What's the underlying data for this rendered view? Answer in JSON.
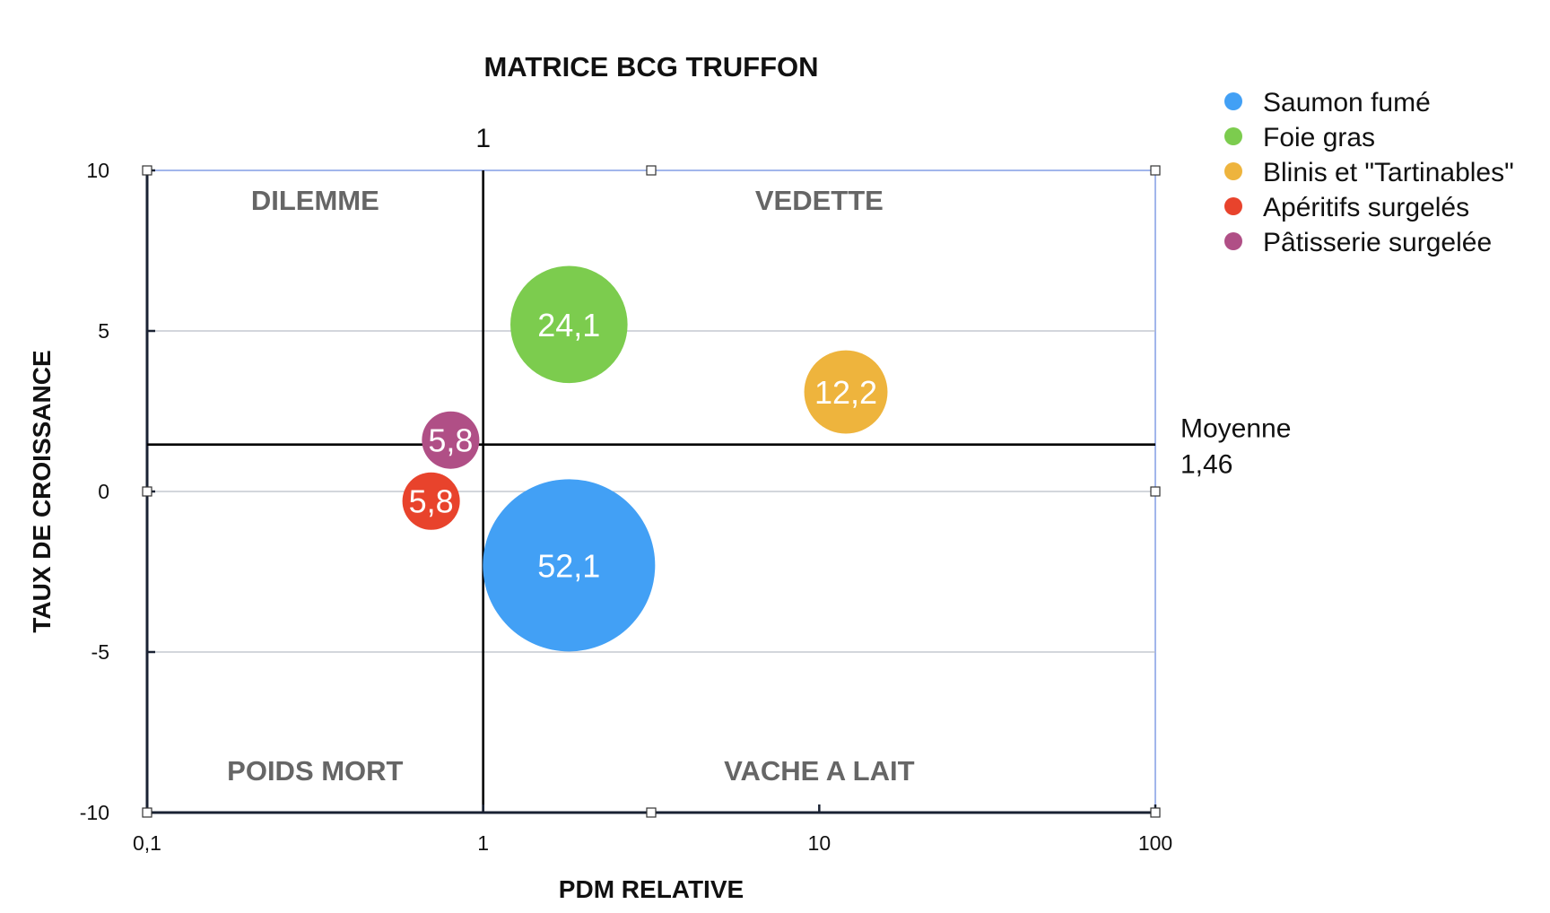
{
  "chart_data": {
    "type": "bubble",
    "title": "MATRICE BCG TRUFFON",
    "xlabel": "PDM RELATIVE",
    "ylabel": "TAUX DE CROISSANCE",
    "xscale": "log",
    "xlim": [
      0.1,
      100
    ],
    "ylim": [
      -10,
      10
    ],
    "x_ticks": [
      "0,1",
      "1",
      "10",
      "100"
    ],
    "y_ticks": [
      "10",
      "5",
      "0",
      "-5",
      "-10"
    ],
    "grid": "horizontal",
    "legend_position": "top-right",
    "quadrants": {
      "top_left": "DILEMME",
      "top_right": "VEDETTE",
      "bottom_left": "POIDS MORT",
      "bottom_right": "VACHE A LAIT"
    },
    "vertical_reference": {
      "x": 1,
      "label": "1"
    },
    "horizontal_reference": {
      "y": 1.46,
      "label_line1": "Moyenne",
      "label_line2": "1,46"
    },
    "series": [
      {
        "name": "Saumon fumé",
        "x": 1.8,
        "y": -2.3,
        "size": 52.1,
        "label": "52,1",
        "color": "#42a0f5"
      },
      {
        "name": "Foie gras",
        "x": 1.8,
        "y": 5.2,
        "size": 24.1,
        "label": "24,1",
        "color": "#7ccc4e"
      },
      {
        "name": "Blinis et \"Tartinables\"",
        "x": 12,
        "y": 3.1,
        "size": 12.2,
        "label": "12,2",
        "color": "#eeb43d"
      },
      {
        "name": "Apéritifs surgelés",
        "x": 0.7,
        "y": -0.3,
        "size": 5.8,
        "label": "5,8",
        "color": "#e8432c"
      },
      {
        "name": "Pâtisserie surgelée",
        "x": 0.8,
        "y": 1.6,
        "size": 5.8,
        "label": "5,8",
        "color": "#b04f86"
      }
    ]
  }
}
